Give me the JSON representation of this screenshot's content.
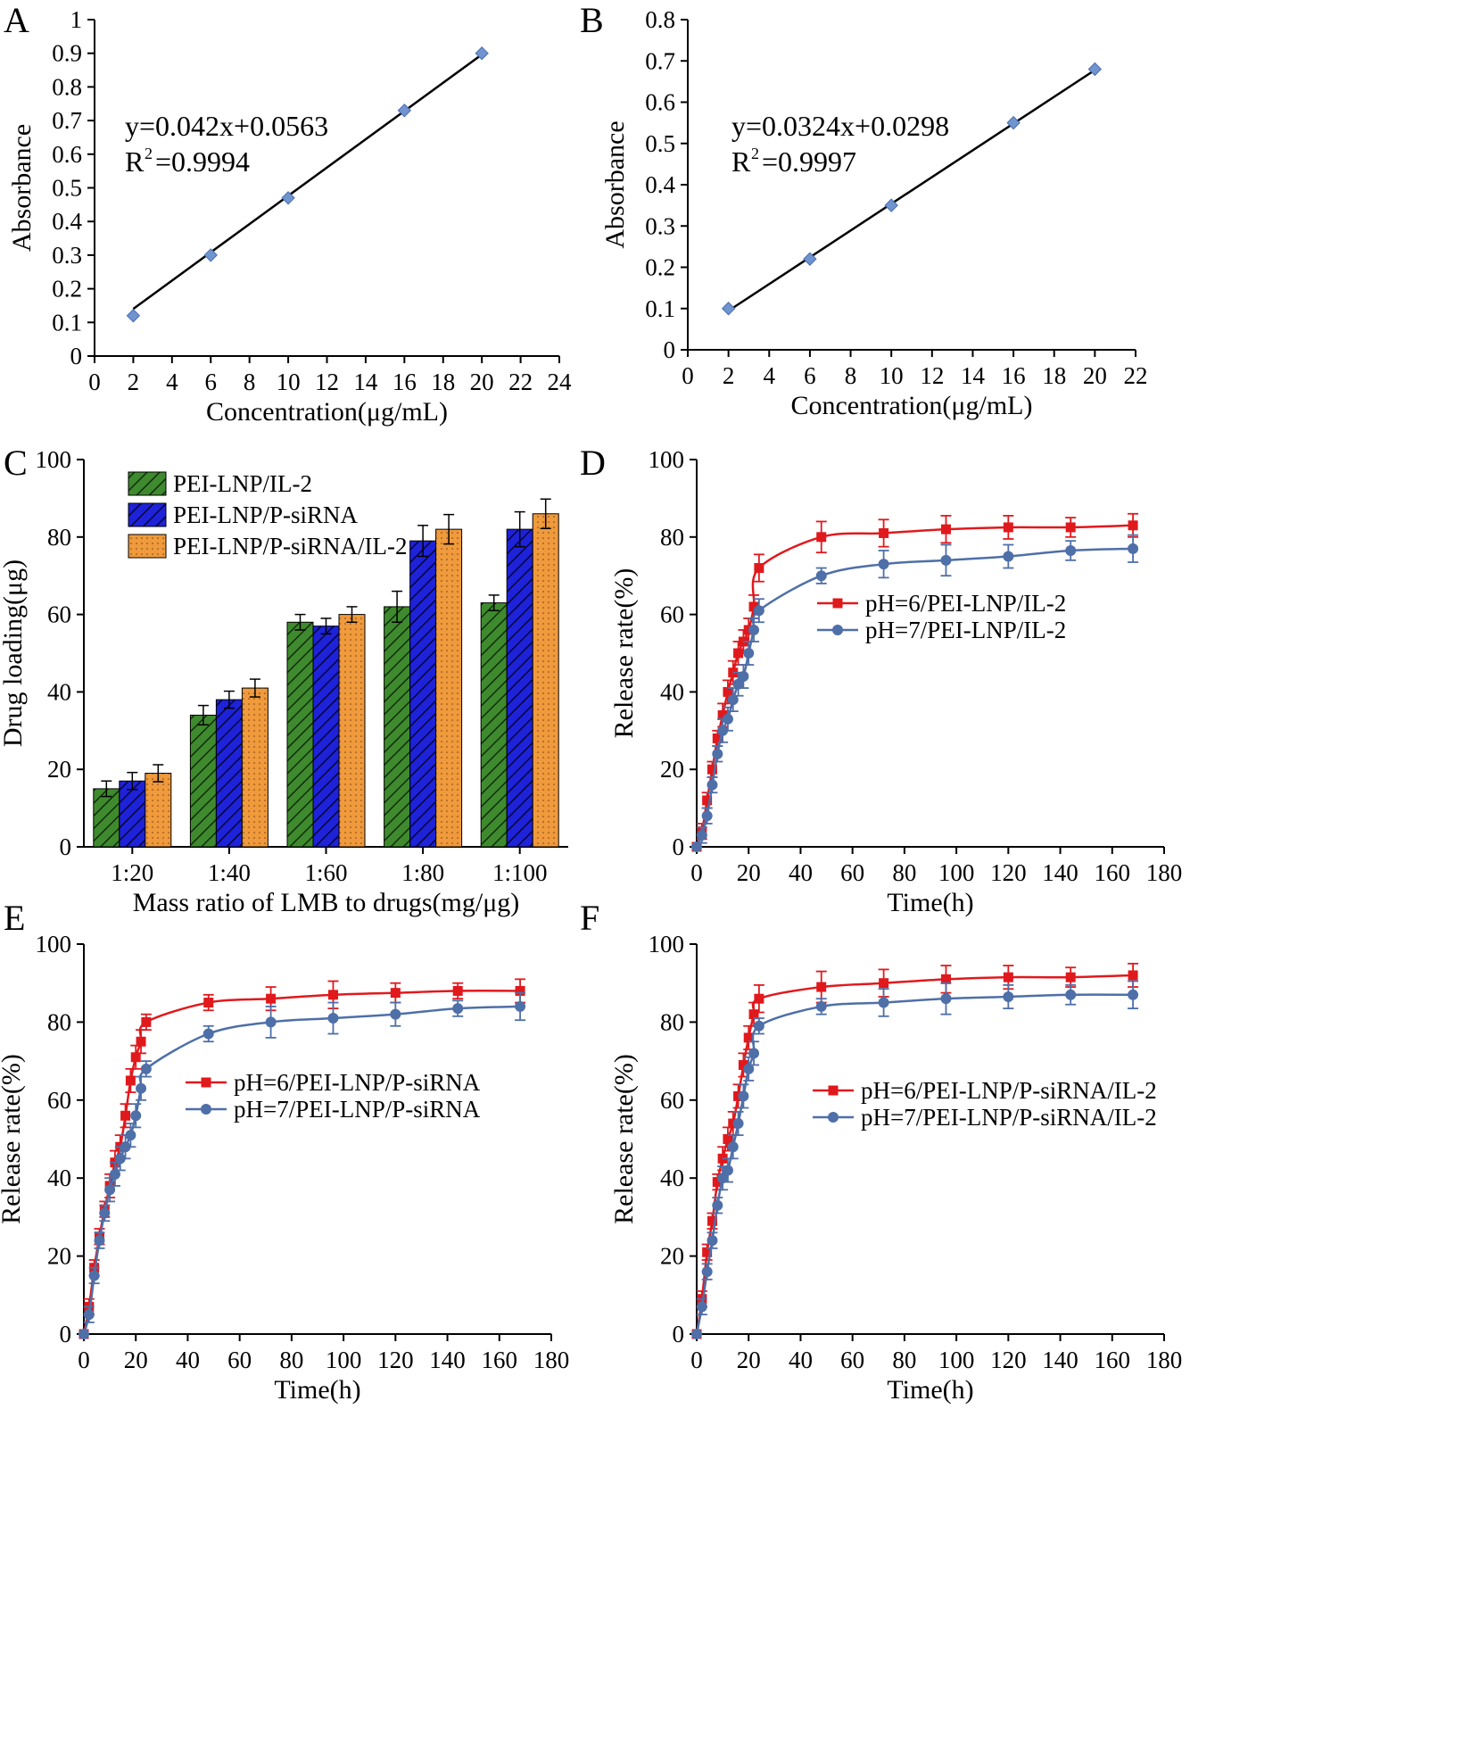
{
  "figure": {
    "description_panels": [
      "A",
      "B",
      "C",
      "D",
      "E",
      "F"
    ]
  },
  "chart_data": [
    {
      "id": "A",
      "panel_label": "A",
      "type": "scatter",
      "xlabel": "Concentration(μg/mL)",
      "ylabel": "Absorbance",
      "xlim": [
        0,
        24
      ],
      "ylim": [
        0,
        1
      ],
      "xticks": [
        0,
        2,
        4,
        6,
        8,
        10,
        12,
        14,
        16,
        18,
        20,
        22,
        24
      ],
      "yticks": [
        0,
        0.1,
        0.2,
        0.3,
        0.4,
        0.5,
        0.6,
        0.7,
        0.8,
        0.9,
        1
      ],
      "x": [
        2,
        6,
        10,
        16,
        20
      ],
      "y": [
        0.12,
        0.3,
        0.47,
        0.73,
        0.9
      ],
      "fit": {
        "slope": 0.042,
        "intercept": 0.0563
      },
      "equation": "y=0.042x+0.0563",
      "r2": "=0.9994",
      "marker_color": "#6f94cf"
    },
    {
      "id": "B",
      "panel_label": "B",
      "type": "scatter",
      "xlabel": "Concentration(μg/mL)",
      "ylabel": "Absorbance",
      "xlim": [
        0,
        22
      ],
      "ylim": [
        0,
        0.8
      ],
      "xticks": [
        0,
        2,
        4,
        6,
        8,
        10,
        12,
        14,
        16,
        18,
        20,
        22
      ],
      "yticks": [
        0,
        0.1,
        0.2,
        0.3,
        0.4,
        0.5,
        0.6,
        0.7,
        0.8
      ],
      "x": [
        2,
        6,
        10,
        16,
        20
      ],
      "y": [
        0.1,
        0.22,
        0.35,
        0.55,
        0.68
      ],
      "fit": {
        "slope": 0.0324,
        "intercept": 0.0298
      },
      "equation": "y=0.0324x+0.0298",
      "r2": "=0.9997",
      "marker_color": "#6f94cf"
    },
    {
      "id": "C",
      "panel_label": "C",
      "type": "bar",
      "xlabel": "Mass ratio of LMB to drugs(mg/μg)",
      "ylabel": "Drug loading(μg)",
      "ylim": [
        0,
        100
      ],
      "yticks": [
        0,
        20,
        40,
        60,
        80,
        100
      ],
      "categories": [
        "1:20",
        "1:40",
        "1:60",
        "1:80",
        "1:100"
      ],
      "series": [
        {
          "name": "PEI-LNP/IL-2",
          "color": "#3f8a2e",
          "pattern": "hatch",
          "values": [
            15,
            34,
            58,
            62,
            63
          ],
          "errors": [
            2,
            2.5,
            2,
            4,
            2
          ]
        },
        {
          "name": "PEI-LNP/P-siRNA",
          "color": "#1e22d8",
          "pattern": "hatch",
          "values": [
            17,
            38,
            57,
            79,
            82
          ],
          "errors": [
            2.2,
            2.2,
            2,
            4,
            4.5
          ]
        },
        {
          "name": "PEI-LNP/P-siRNA/IL-2",
          "color": "#ef9a3c",
          "pattern": "dots",
          "values": [
            19,
            41,
            60,
            82,
            86
          ],
          "errors": [
            2.2,
            2.3,
            2,
            3.8,
            3.8
          ]
        }
      ]
    },
    {
      "id": "D",
      "panel_label": "D",
      "type": "line",
      "xlabel": "Time(h)",
      "ylabel": "Release rate(%)",
      "xlim": [
        0,
        180
      ],
      "ylim": [
        0,
        100
      ],
      "xticks": [
        0,
        20,
        40,
        60,
        80,
        100,
        120,
        140,
        160,
        180
      ],
      "yticks": [
        0,
        20,
        40,
        60,
        80,
        100
      ],
      "x": [
        0,
        2,
        4,
        6,
        8,
        10,
        12,
        14,
        16,
        18,
        20,
        22,
        24,
        48,
        72,
        96,
        120,
        144,
        168
      ],
      "series": [
        {
          "name": "pH=6/PEI-LNP/IL-2",
          "color": "#e0191d",
          "marker": "square",
          "values": [
            0,
            4,
            12,
            20,
            28,
            34,
            40,
            45,
            50,
            53,
            56,
            62,
            72,
            80,
            81,
            82,
            82.5,
            82.5,
            83
          ],
          "errors": [
            0,
            2,
            2,
            2,
            2,
            3,
            3,
            3,
            3,
            3,
            3,
            3,
            3.5,
            4,
            3.5,
            3.5,
            3,
            2.5,
            3
          ]
        },
        {
          "name": "pH=7/PEI-LNP/IL-2",
          "color": "#4e6fa8",
          "marker": "circle",
          "values": [
            0,
            3,
            8,
            16,
            24,
            30,
            33,
            38,
            42,
            44,
            50,
            56,
            61,
            70,
            73,
            74,
            75,
            76.5,
            77
          ],
          "errors": [
            0,
            2,
            2,
            2,
            2,
            3,
            3,
            3,
            3,
            3,
            3,
            3,
            3,
            2,
            3.5,
            4,
            3,
            2.5,
            3.5
          ]
        }
      ]
    },
    {
      "id": "E",
      "panel_label": "E",
      "type": "line",
      "xlabel": "Time(h)",
      "ylabel": "Release rate(%)",
      "xlim": [
        0,
        180
      ],
      "ylim": [
        0,
        100
      ],
      "xticks": [
        0,
        20,
        40,
        60,
        80,
        100,
        120,
        140,
        160,
        180
      ],
      "yticks": [
        0,
        20,
        40,
        60,
        80,
        100
      ],
      "x": [
        0,
        2,
        4,
        6,
        8,
        10,
        12,
        14,
        16,
        18,
        20,
        22,
        24,
        48,
        72,
        96,
        120,
        144,
        168
      ],
      "series": [
        {
          "name": "pH=6/PEI-LNP/P-siRNA",
          "color": "#e0191d",
          "marker": "square",
          "values": [
            0,
            7,
            17,
            25,
            32,
            38,
            44,
            48,
            56,
            65,
            71,
            75,
            80,
            85,
            86,
            87,
            87.5,
            88,
            88
          ],
          "errors": [
            0,
            2,
            2,
            2,
            2,
            3,
            3,
            3,
            3,
            3,
            3,
            3,
            2,
            2,
            3,
            3.5,
            2.5,
            2,
            3
          ]
        },
        {
          "name": "pH=7/PEI-LNP/P-siRNA",
          "color": "#4e6fa8",
          "marker": "circle",
          "values": [
            0,
            5,
            15,
            24,
            31,
            37,
            41,
            45,
            48,
            51,
            56,
            63,
            68,
            77,
            80,
            81,
            82,
            83.5,
            84
          ],
          "errors": [
            0,
            2,
            2,
            2,
            2,
            3,
            3,
            3,
            3,
            3,
            3,
            3,
            2,
            2,
            4,
            4,
            3,
            2,
            3.5
          ]
        }
      ]
    },
    {
      "id": "F",
      "panel_label": "F",
      "type": "line",
      "xlabel": "Time(h)",
      "ylabel": "Release rate(%)",
      "xlim": [
        0,
        180
      ],
      "ylim": [
        0,
        100
      ],
      "xticks": [
        0,
        20,
        40,
        60,
        80,
        100,
        120,
        140,
        160,
        180
      ],
      "yticks": [
        0,
        20,
        40,
        60,
        80,
        100
      ],
      "x": [
        0,
        2,
        4,
        6,
        8,
        10,
        12,
        14,
        16,
        18,
        20,
        22,
        24,
        48,
        72,
        96,
        120,
        144,
        168
      ],
      "series": [
        {
          "name": "pH=6/PEI-LNP/P-siRNA/IL-2",
          "color": "#e0191d",
          "marker": "square",
          "values": [
            0,
            9,
            21,
            29,
            39,
            45,
            50,
            54,
            61,
            69,
            76,
            82,
            86,
            89,
            90,
            91,
            91.5,
            91.5,
            92
          ],
          "errors": [
            0,
            2,
            2,
            2,
            2,
            3,
            3,
            3,
            3,
            3,
            3,
            3,
            3.5,
            4,
            3.5,
            3.5,
            3,
            2.5,
            3
          ]
        },
        {
          "name": "pH=7/PEI-LNP/P-siRNA/IL-2",
          "color": "#4e6fa8",
          "marker": "circle",
          "values": [
            0,
            7,
            16,
            24,
            33,
            40,
            42,
            48,
            54,
            61,
            68,
            72,
            79,
            84,
            85,
            86,
            86.5,
            87,
            87
          ],
          "errors": [
            0,
            2,
            2,
            2,
            2,
            3,
            3,
            3,
            3,
            3,
            3,
            3,
            2,
            2,
            3.5,
            4,
            3,
            2.5,
            3.5
          ]
        }
      ]
    }
  ]
}
